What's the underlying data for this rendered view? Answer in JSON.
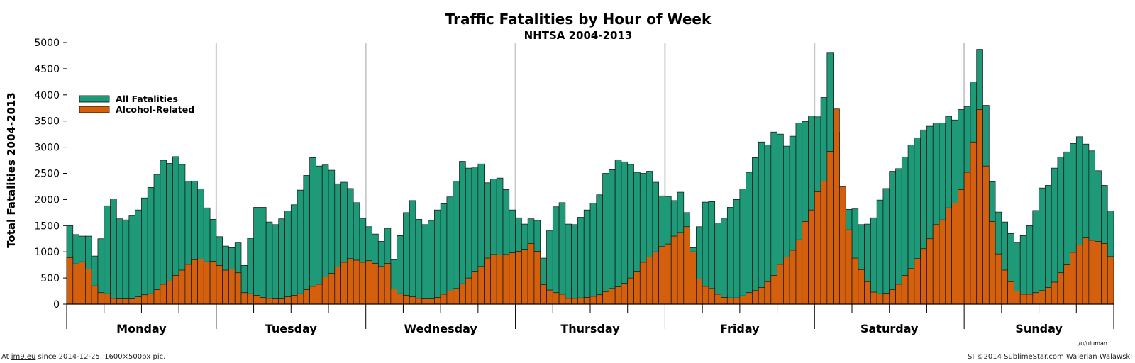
{
  "chart_data": {
    "type": "bar",
    "title": "Traffic Fatalities by Hour of Week",
    "subtitle": "NHTSA 2004-2013",
    "ylabel": "Total Fatalities 2004-2013",
    "ylim": [
      0,
      5000
    ],
    "yticks": [
      0,
      500,
      1000,
      1500,
      2000,
      2500,
      3000,
      3500,
      4000,
      4500,
      5000
    ],
    "days": [
      "Monday",
      "Tuesday",
      "Wednesday",
      "Thursday",
      "Friday",
      "Saturday",
      "Sunday"
    ],
    "grid": "vertical lines between days",
    "legend_position": "top-left",
    "series": [
      {
        "name": "All Fatalities",
        "color": "#1e9a78",
        "values": [
          1500,
          1330,
          1300,
          1300,
          920,
          1250,
          1880,
          2010,
          1630,
          1610,
          1700,
          1800,
          2030,
          2230,
          2480,
          2750,
          2690,
          2820,
          2670,
          2350,
          2350,
          2200,
          1840,
          1620,
          1290,
          1110,
          1080,
          1170,
          740,
          1260,
          1850,
          1850,
          1570,
          1520,
          1630,
          1780,
          1900,
          2180,
          2460,
          2800,
          2640,
          2660,
          2560,
          2300,
          2330,
          2210,
          1940,
          1640,
          1480,
          1340,
          1200,
          1450,
          850,
          1310,
          1750,
          1980,
          1620,
          1520,
          1600,
          1800,
          1920,
          2050,
          2350,
          2730,
          2600,
          2620,
          2680,
          2320,
          2390,
          2410,
          2190,
          1800,
          1650,
          1530,
          1630,
          1600,
          880,
          1410,
          1860,
          1940,
          1530,
          1520,
          1660,
          1800,
          1930,
          2090,
          2500,
          2570,
          2760,
          2720,
          2670,
          2520,
          2500,
          2540,
          2330,
          2070,
          2060,
          1980,
          2140,
          1750,
          1080,
          1480,
          1950,
          1960,
          1550,
          1630,
          1850,
          2000,
          2200,
          2520,
          2800,
          3100,
          3040,
          3290,
          3250,
          3020,
          3210,
          3460,
          3490,
          3600,
          3580,
          3950,
          4800,
          3290,
          2240,
          1810,
          1820,
          1520,
          1530,
          1650,
          1990,
          2210,
          2540,
          2590,
          2810,
          3040,
          3180,
          3330,
          3400,
          3460,
          3460,
          3590,
          3520,
          3720,
          3780,
          4250,
          4870,
          3800,
          2340,
          1760,
          1570,
          1350,
          1170,
          1310,
          1500,
          1790,
          2220,
          2270,
          2600,
          2810,
          2910,
          3070,
          3200,
          3060,
          2930,
          2550,
          2270,
          1780
        ]
      },
      {
        "name": "Alcohol-Related",
        "color": "#d4600e",
        "values": [
          890,
          770,
          810,
          670,
          350,
          220,
          200,
          110,
          100,
          100,
          100,
          140,
          180,
          200,
          280,
          380,
          440,
          550,
          650,
          760,
          850,
          860,
          810,
          820,
          740,
          650,
          670,
          600,
          220,
          200,
          170,
          130,
          110,
          100,
          100,
          140,
          170,
          200,
          280,
          340,
          380,
          520,
          590,
          710,
          800,
          870,
          840,
          800,
          830,
          780,
          720,
          780,
          290,
          200,
          170,
          140,
          110,
          100,
          100,
          130,
          190,
          250,
          300,
          390,
          500,
          630,
          720,
          880,
          950,
          940,
          950,
          980,
          1010,
          1050,
          1160,
          1010,
          370,
          270,
          220,
          190,
          110,
          110,
          120,
          130,
          150,
          180,
          240,
          300,
          330,
          400,
          500,
          630,
          800,
          900,
          1000,
          1100,
          1150,
          1300,
          1370,
          1480,
          1000,
          480,
          340,
          300,
          190,
          130,
          120,
          120,
          160,
          220,
          260,
          320,
          430,
          550,
          760,
          900,
          1030,
          1230,
          1580,
          1800,
          2150,
          2350,
          2920,
          3730,
          2240,
          1420,
          880,
          660,
          430,
          230,
          200,
          210,
          280,
          380,
          550,
          680,
          870,
          1060,
          1250,
          1520,
          1610,
          1840,
          1930,
          2190,
          2520,
          3100,
          3720,
          2640,
          1580,
          960,
          650,
          430,
          250,
          190,
          190,
          220,
          260,
          320,
          420,
          600,
          750,
          990,
          1130,
          1280,
          1220,
          1200,
          1160,
          910
        ]
      }
    ]
  },
  "credit": "/u/uluman",
  "footer": {
    "left_prefix": "At",
    "left_link": "im9.eu",
    "left_suffix": "since 2014-12-25, 1600×500px pic.",
    "right": "SI ©2014 SublimeStar.com Walerian Walawski"
  }
}
